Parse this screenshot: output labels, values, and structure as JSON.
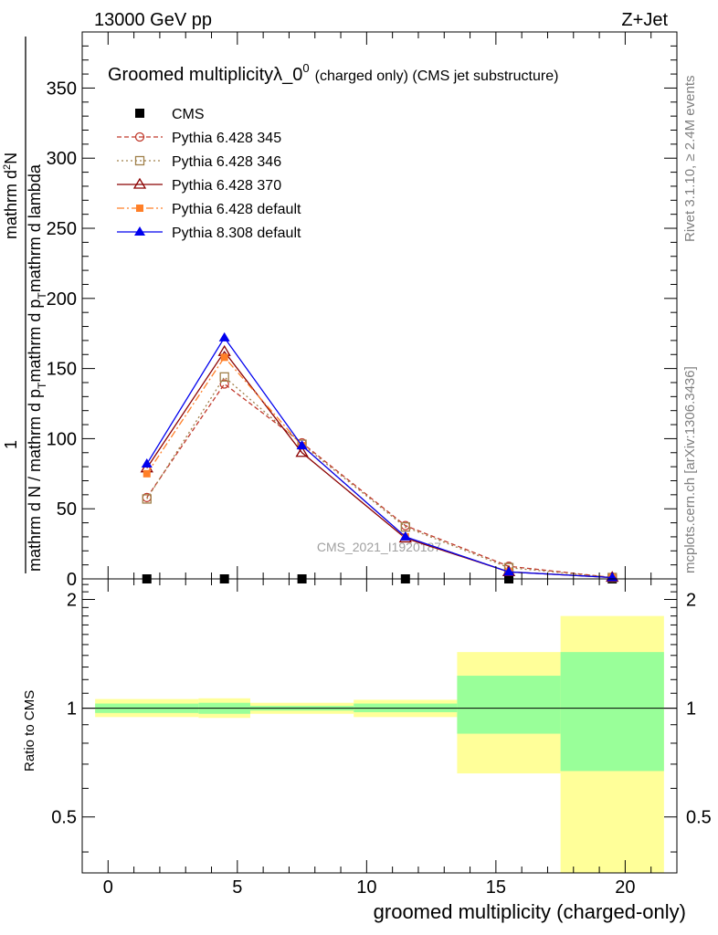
{
  "header": {
    "left": "13000 GeV pp",
    "right": "Z+Jet"
  },
  "side_labels": {
    "rivet": "Rivet 3.1.10, ≥ 2.4M events",
    "mcplots": "mcplots.cern.ch [arXiv:1306.3436]"
  },
  "watermark": "CMS_2021_I1920187",
  "colors": {
    "cms": "#000000",
    "p345": "#c0392b",
    "p346": "#a0804a",
    "p370": "#8b0000",
    "p6def": "#ff7f27",
    "p8def": "#0000ee",
    "band_inner": "#99ff99",
    "band_outer": "#ffff99"
  },
  "chart_data": [
    {
      "type": "line",
      "title_main": "Groomed multiplicityλ_0",
      "title_sup": "0",
      "title_sub": "(charged only) (CMS jet substructure)",
      "ylabel": "1/(mathrm d N / mathrm d p_T mathrm d p_T mathrm d lambda) mathrm d²N",
      "ylabel_parts": {
        "numerator_top": "mathrm d",
        "numerator_sup": "2",
        "numerator_N": "N",
        "one": "1",
        "denominator": "mathrm d N / mathrm d p",
        "den_sub": "T",
        "den_mid": "mathrm d p",
        "den_sub2": "T",
        "den_end": "mathrm d lambda"
      },
      "ylim": [
        0,
        390
      ],
      "yticks": [
        50,
        100,
        150,
        200,
        250,
        300,
        350
      ],
      "ytick_labels": [
        "50",
        "100",
        "150",
        "200",
        "250",
        "300",
        "350"
      ],
      "x": [
        1.5,
        4.5,
        7.5,
        11.5,
        15.5,
        19.5
      ],
      "xlim": [
        -1,
        22
      ],
      "series": [
        {
          "name": "CMS",
          "key": "cms",
          "marker": "square",
          "dash": "",
          "values": [
            0,
            0,
            0,
            0,
            0,
            0
          ]
        },
        {
          "name": "Pythia 6.428 345",
          "key": "p345",
          "marker": "circle-open",
          "dash": "5,3",
          "values": [
            58,
            139,
            97,
            38,
            9,
            1
          ]
        },
        {
          "name": "Pythia 6.428 346",
          "key": "p346",
          "marker": "square-open",
          "dash": "2,3",
          "values": [
            57,
            144,
            96,
            37,
            8,
            1
          ]
        },
        {
          "name": "Pythia 6.428 370",
          "key": "p370",
          "marker": "triangle-open",
          "dash": "",
          "values": [
            79,
            162,
            90,
            29,
            5,
            1
          ]
        },
        {
          "name": "Pythia 6.428 default",
          "key": "p6def",
          "marker": "square-filled",
          "dash": "8,3,2,3",
          "values": [
            75,
            158,
            95,
            30,
            5,
            1
          ]
        },
        {
          "name": "Pythia 8.308 default",
          "key": "p8def",
          "marker": "triangle-filled",
          "dash": "",
          "values": [
            82,
            172,
            95,
            30,
            5,
            1
          ]
        }
      ]
    },
    {
      "type": "area",
      "ylabel": "Ratio to CMS",
      "xlabel": "groomed multiplicity (charged-only)",
      "ylim": [
        0.35,
        2.28
      ],
      "yticks": [
        0.5,
        1,
        2
      ],
      "ytick_labels": [
        "0.5",
        "1",
        "2"
      ],
      "xlim": [
        -1,
        22
      ],
      "xticks": [
        0,
        5,
        10,
        15,
        20
      ],
      "xtick_labels": [
        "0",
        "5",
        "10",
        "15",
        "20"
      ],
      "bins": [
        {
          "lo": -0.5,
          "hi": 3.5,
          "inner": [
            0.97,
            1.03
          ],
          "outer": [
            0.945,
            1.06
          ]
        },
        {
          "lo": 3.5,
          "hi": 5.5,
          "inner": [
            0.965,
            1.035
          ],
          "outer": [
            0.94,
            1.065
          ]
        },
        {
          "lo": 5.5,
          "hi": 9.5,
          "inner": [
            0.985,
            1.015
          ],
          "outer": [
            0.965,
            1.035
          ]
        },
        {
          "lo": 9.5,
          "hi": 13.5,
          "inner": [
            0.975,
            1.03
          ],
          "outer": [
            0.945,
            1.055
          ]
        },
        {
          "lo": 13.5,
          "hi": 17.5,
          "inner": [
            0.85,
            1.23
          ],
          "outer": [
            0.66,
            1.43
          ]
        },
        {
          "lo": 17.5,
          "hi": 21.5,
          "inner": [
            0.67,
            1.43
          ],
          "outer": [
            0.35,
            1.8
          ]
        }
      ],
      "reference_line": 1
    }
  ]
}
